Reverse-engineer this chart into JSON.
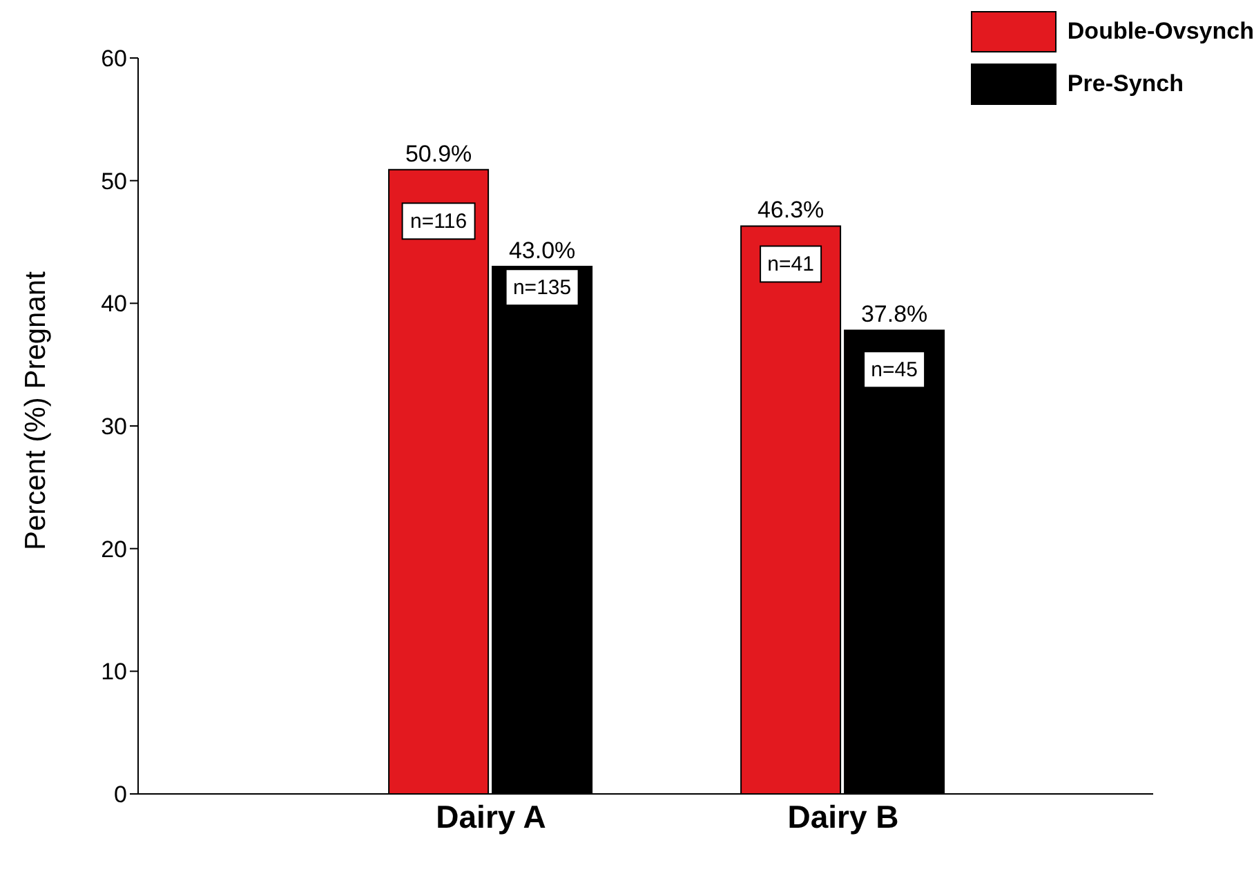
{
  "chart_data": {
    "type": "bar",
    "categories": [
      "Dairy A",
      "Dairy B"
    ],
    "series": [
      {
        "name": "Double-Ovsynch",
        "color": "#e3191f",
        "values": [
          50.9,
          46.3
        ],
        "value_labels": [
          "50.9%",
          "46.3%"
        ]
      },
      {
        "name": "Pre-Synch",
        "color": "#000000",
        "values": [
          43.0,
          37.8
        ],
        "value_labels": [
          "43.0%",
          "37.8%"
        ]
      }
    ],
    "ylabel": "Percent (%) Pregnant",
    "ylim": [
      0,
      60
    ],
    "yticks": [
      0,
      10,
      20,
      30,
      40,
      50,
      60
    ],
    "grid": false,
    "legend": "top right",
    "annotations": [
      {
        "text": "n=116",
        "x": "Dairy A",
        "y": 46.7
      },
      {
        "text": "n=135",
        "x": "Dairy A",
        "y": 41.3
      },
      {
        "text": "n=41",
        "x": "Dairy B",
        "y": 43.2
      },
      {
        "text": "n=45",
        "x": "Dairy B",
        "y": 34.6
      }
    ]
  }
}
